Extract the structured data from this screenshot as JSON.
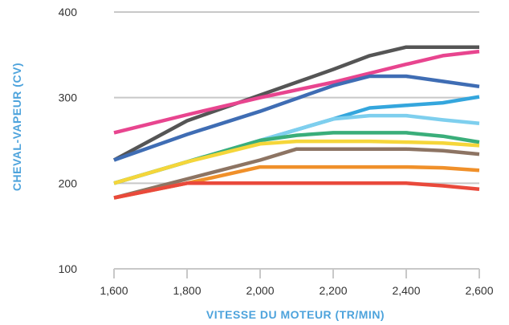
{
  "chart_data": {
    "type": "line",
    "xlabel": "VITESSE DU MOTEUR (TR/MIN)",
    "ylabel": "CHEVAL-VAPEUR (CV)",
    "xlim": [
      1600,
      2600
    ],
    "ylim": [
      100,
      400
    ],
    "x_ticks": [
      1600,
      1800,
      2000,
      2200,
      2400,
      2600
    ],
    "x_tick_labels": [
      "1,600",
      "1,800",
      "2,000",
      "2,200",
      "2,400",
      "2,600"
    ],
    "y_ticks": [
      100,
      200,
      300,
      400
    ],
    "y_tick_labels": [
      "100",
      "200",
      "300",
      "400"
    ],
    "grid": "horizontal",
    "series": [
      {
        "color": "#555555",
        "points": [
          [
            1600,
            227
          ],
          [
            1800,
            273
          ],
          [
            2000,
            303
          ],
          [
            2100,
            318
          ],
          [
            2200,
            333
          ],
          [
            2300,
            349
          ],
          [
            2400,
            359
          ],
          [
            2500,
            359
          ],
          [
            2600,
            359
          ]
        ]
      },
      {
        "color": "#e8458f",
        "points": [
          [
            1600,
            259
          ],
          [
            1800,
            280
          ],
          [
            2000,
            300
          ],
          [
            2200,
            318
          ],
          [
            2400,
            339
          ],
          [
            2500,
            349
          ],
          [
            2600,
            354
          ]
        ]
      },
      {
        "color": "#3f6db4",
        "points": [
          [
            1600,
            227
          ],
          [
            1800,
            257
          ],
          [
            2000,
            284
          ],
          [
            2100,
            299
          ],
          [
            2200,
            314
          ],
          [
            2300,
            325
          ],
          [
            2400,
            325
          ],
          [
            2500,
            319
          ],
          [
            2600,
            313
          ]
        ]
      },
      {
        "color": "#34a6dd",
        "points": [
          [
            1600,
            200
          ],
          [
            1800,
            225
          ],
          [
            2000,
            250
          ],
          [
            2200,
            275
          ],
          [
            2300,
            288
          ],
          [
            2400,
            291
          ],
          [
            2500,
            294
          ],
          [
            2600,
            301
          ]
        ]
      },
      {
        "color": "#7ecfee",
        "points": [
          [
            1600,
            200
          ],
          [
            1800,
            225
          ],
          [
            2000,
            250
          ],
          [
            2200,
            275
          ],
          [
            2300,
            279
          ],
          [
            2400,
            279
          ],
          [
            2500,
            274
          ],
          [
            2600,
            270
          ]
        ]
      },
      {
        "color": "#3aae7a",
        "points": [
          [
            1600,
            200
          ],
          [
            1800,
            225
          ],
          [
            2000,
            250
          ],
          [
            2100,
            256
          ],
          [
            2200,
            259
          ],
          [
            2300,
            259
          ],
          [
            2400,
            259
          ],
          [
            2500,
            255
          ],
          [
            2600,
            248
          ]
        ]
      },
      {
        "color": "#f5d63a",
        "points": [
          [
            1600,
            200
          ],
          [
            1800,
            225
          ],
          [
            2000,
            246
          ],
          [
            2100,
            249
          ],
          [
            2200,
            249
          ],
          [
            2300,
            249
          ],
          [
            2400,
            248
          ],
          [
            2500,
            247
          ],
          [
            2600,
            244
          ]
        ]
      },
      {
        "color": "#8d7463",
        "points": [
          [
            1600,
            183
          ],
          [
            1800,
            205
          ],
          [
            2000,
            227
          ],
          [
            2100,
            240
          ],
          [
            2200,
            240
          ],
          [
            2300,
            240
          ],
          [
            2400,
            240
          ],
          [
            2500,
            238
          ],
          [
            2600,
            234
          ]
        ]
      },
      {
        "color": "#f0902a",
        "points": [
          [
            1600,
            183
          ],
          [
            1800,
            200
          ],
          [
            2000,
            219
          ],
          [
            2100,
            219
          ],
          [
            2200,
            219
          ],
          [
            2300,
            219
          ],
          [
            2400,
            219
          ],
          [
            2500,
            218
          ],
          [
            2600,
            215
          ]
        ]
      },
      {
        "color": "#e9493b",
        "points": [
          [
            1600,
            183
          ],
          [
            1800,
            200
          ],
          [
            2000,
            200
          ],
          [
            2200,
            200
          ],
          [
            2300,
            200
          ],
          [
            2400,
            200
          ],
          [
            2500,
            197
          ],
          [
            2600,
            193
          ]
        ]
      }
    ]
  }
}
